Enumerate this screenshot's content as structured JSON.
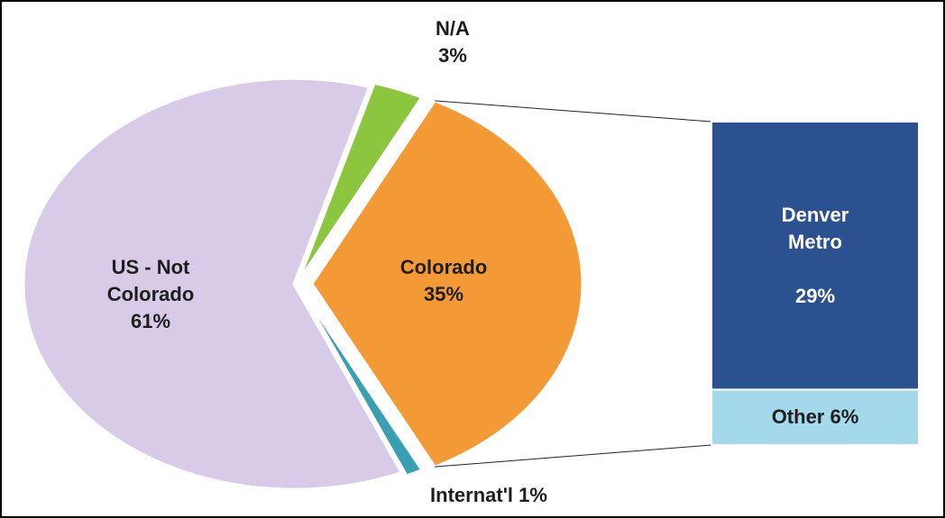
{
  "chart_data": {
    "type": "pie-of-bar",
    "categories": [
      "US - Not Colorado",
      "Colorado",
      "Internat'l",
      "N/A"
    ],
    "values": [
      61,
      35,
      1,
      3
    ],
    "value_labels": [
      "61%",
      "35%",
      "1%",
      "3%"
    ],
    "colors": [
      "#d8cbe8",
      "#f39a36",
      "#3a9fb1",
      "#8cc63f"
    ],
    "breakdown": {
      "categories": [
        "Denver Metro",
        "Other"
      ],
      "values": [
        29,
        6
      ],
      "value_labels": [
        "29%",
        "6%"
      ],
      "colors": [
        "#2b5191",
        "#a3d9ea"
      ]
    }
  }
}
